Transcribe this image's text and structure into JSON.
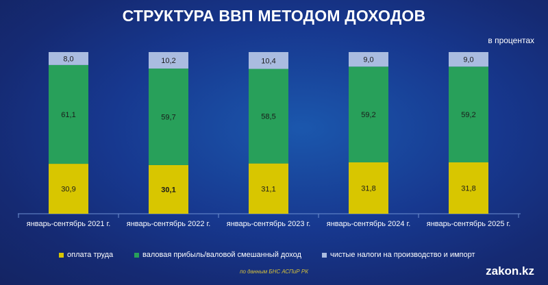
{
  "title": "СТРУКТУРА ВВП МЕТОДОМ ДОХОДОВ",
  "unit_note": "в процентах",
  "source": "по данным БНС АСПиР РК",
  "brand": "zakon.kz",
  "legend": [
    {
      "label": "оплата труда",
      "color": "#d8c600"
    },
    {
      "label": "валовая прибыль/валовой смешанный доход",
      "color": "#28a05a"
    },
    {
      "label": "чистые налоги на производство и импорт",
      "color": "#aabce0"
    }
  ],
  "chart_data": {
    "type": "bar",
    "stacked": true,
    "categories": [
      "январь-сентябрь 2021 г.",
      "январь-сентябрь 2022 г.",
      "январь-сентябрь 2023 г.",
      "январь-сентябрь 2024 г.",
      "январь-сентябрь 2025 г."
    ],
    "series": [
      {
        "name": "оплата труда",
        "values": [
          30.9,
          30.1,
          31.1,
          31.8,
          31.8
        ],
        "labels": [
          "30,9",
          "30,1",
          "31,1",
          "31,8",
          "31,8"
        ],
        "color": "#d8c600"
      },
      {
        "name": "валовая прибыль/валовой смешанный доход",
        "values": [
          61.1,
          59.7,
          58.5,
          59.2,
          59.2
        ],
        "labels": [
          "61,1",
          "59,7",
          "58,5",
          "59,2",
          "59,2"
        ],
        "color": "#28a05a"
      },
      {
        "name": "чистые налоги на производство и импорт",
        "values": [
          8.0,
          10.2,
          10.4,
          9.0,
          9.0
        ],
        "labels": [
          "8,0",
          "10,2",
          "10,4",
          "9,0",
          "9,0"
        ],
        "color": "#aabce0"
      }
    ],
    "ylim": [
      0,
      100
    ],
    "title": "СТРУКТУРА ВВП МЕТОДОМ ДОХОДОВ",
    "ylabel": "в процентах"
  }
}
